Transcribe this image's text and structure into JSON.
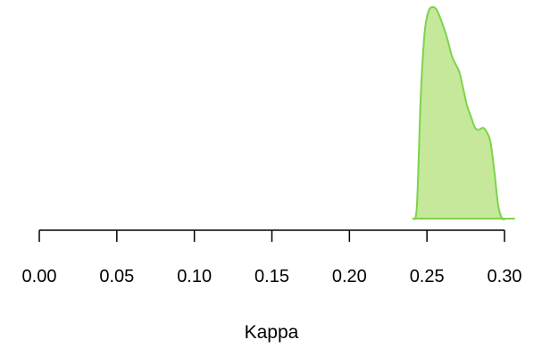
{
  "chart_data": {
    "type": "area",
    "title": "",
    "xlabel": "Kappa",
    "ylabel": "",
    "xlim": [
      0.0,
      0.3
    ],
    "xticks": [
      0.0,
      0.05,
      0.1,
      0.15,
      0.2,
      0.25,
      0.3
    ],
    "xtick_labels": [
      "0.00",
      "0.05",
      "0.10",
      "0.15",
      "0.20",
      "0.25",
      "0.30"
    ],
    "y_axis_shown": false,
    "grid": false,
    "legend": "none",
    "colors": {
      "fill": "#c5e89b",
      "stroke": "#7ed34a",
      "axis": "#000000"
    },
    "series": [
      {
        "x": [
          0.241,
          0.2435,
          0.246,
          0.2485,
          0.251,
          0.2535,
          0.256,
          0.2585,
          0.261,
          0.2635,
          0.266,
          0.2685,
          0.271,
          0.2735,
          0.276,
          0.2785,
          0.281,
          0.2835,
          0.286,
          0.2885,
          0.291,
          0.2935,
          0.296,
          0.2985,
          0.301,
          0.3035,
          0.3063
        ],
        "y": [
          0.0,
          0.06,
          0.58,
          0.88,
          0.98,
          1.0,
          0.99,
          0.95,
          0.9,
          0.84,
          0.77,
          0.73,
          0.69,
          0.61,
          0.53,
          0.48,
          0.43,
          0.42,
          0.43,
          0.41,
          0.36,
          0.22,
          0.06,
          0.0,
          0.0,
          0.0,
          0.0
        ]
      }
    ]
  }
}
